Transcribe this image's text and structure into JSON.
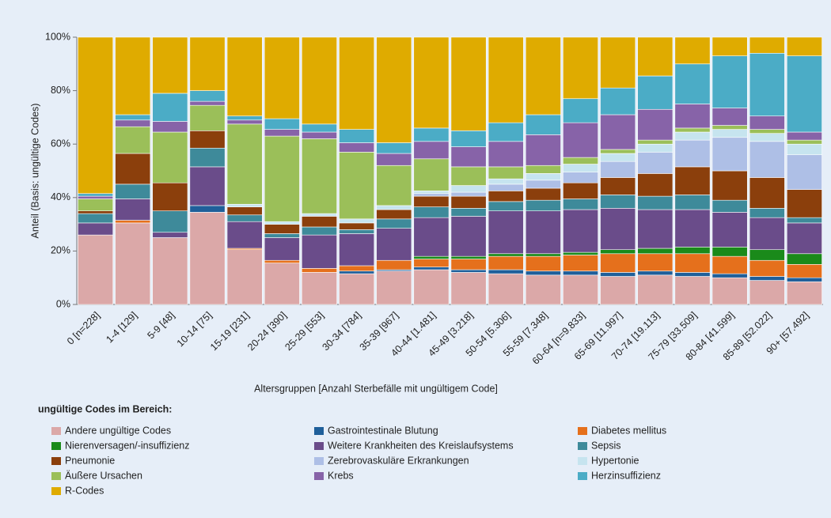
{
  "chart_data": {
    "type": "stacked_bar",
    "y_label": "Anteil (Basis: ungültige Codes)",
    "x_label": "Altersgruppen [Anzahl Sterbefälle mit ungültigem Code]",
    "legend_title": "ungültige Codes im Bereich:",
    "categories": [
      "0 [n=228]",
      "1-4 [129]",
      "5-9 [48]",
      "10-14 [75]",
      "15-19 [231]",
      "20-24 [390]",
      "25-29 [553]",
      "30-34 [784]",
      "35-39 [967]",
      "40-44 [1.481]",
      "45-49 [3.218]",
      "50-54 [5.306]",
      "55-59 [7.348]",
      "60-64 [n=9.833]",
      "65-69 [11.997]",
      "70-74 [19.113]",
      "75-79 [33.509]",
      "80-84 [41.599]",
      "85-89 [52.022]",
      "90+ [57.492]"
    ],
    "ylim": [
      0,
      100
    ],
    "yticks": [
      {
        "value": 0,
        "label": "0%"
      },
      {
        "value": 20,
        "label": "20%"
      },
      {
        "value": 40,
        "label": "40%"
      },
      {
        "value": 60,
        "label": "60%"
      },
      {
        "value": 80,
        "label": "80%"
      },
      {
        "value": 100,
        "label": "100%"
      }
    ],
    "series": [
      {
        "name": "Andere ungültige Codes",
        "color": "#dba8a8",
        "values": [
          26,
          30.5,
          25,
          34.5,
          20.5,
          15.5,
          12,
          11.5,
          12.5,
          13,
          12,
          11.5,
          11,
          11,
          10.5,
          11,
          10.5,
          10,
          9,
          8.5
        ]
      },
      {
        "name": "Gastrointestinale Blutung",
        "color": "#1f5f9a",
        "values": [
          0,
          0,
          0,
          2.5,
          0,
          0,
          0,
          1,
          0.5,
          1,
          1,
          1.5,
          1.5,
          1.5,
          1.5,
          1.5,
          1.5,
          1.5,
          1.5,
          1.5
        ]
      },
      {
        "name": "Diabetes mellitus",
        "color": "#e5701c",
        "values": [
          0,
          1,
          0,
          0,
          0.5,
          1,
          1.5,
          2,
          3.5,
          3,
          4,
          5,
          5.5,
          6,
          7,
          6.5,
          7,
          6.5,
          6,
          5
        ]
      },
      {
        "name": "Nierenversagen/-insuffizienz",
        "color": "#1a8a1a",
        "values": [
          0,
          0,
          0,
          0,
          0,
          0,
          0,
          0,
          0,
          1,
          1,
          1,
          1,
          1,
          1.5,
          2,
          2.5,
          3.5,
          4,
          4
        ]
      },
      {
        "name": "Weitere Krankheiten des Kreislaufsystems",
        "color": "#6a4c8a",
        "values": [
          4.5,
          8,
          2,
          14.5,
          10,
          8.5,
          12.5,
          12,
          12,
          14.5,
          15,
          16,
          16,
          16,
          15.5,
          14.5,
          14,
          13,
          12,
          11.5
        ]
      },
      {
        "name": "Sepsis",
        "color": "#3e8a9a",
        "values": [
          3.5,
          5.5,
          8,
          7,
          2.5,
          1.5,
          3,
          1.5,
          3.5,
          4,
          3,
          3.5,
          4,
          4,
          5,
          5,
          5.5,
          4.5,
          3.5,
          2
        ]
      },
      {
        "name": "Pneumonie",
        "color": "#8b3f0c",
        "values": [
          1,
          11.5,
          10.5,
          6.5,
          3,
          3.5,
          4,
          2.5,
          3.5,
          4,
          4.5,
          4,
          4.5,
          6,
          6.5,
          8.5,
          10.5,
          11,
          11.5,
          10.5
        ]
      },
      {
        "name": "Zerebrovaskuläre Erkrankungen",
        "color": "#aebfe6",
        "values": [
          0,
          0,
          0,
          0,
          0,
          0,
          0,
          0,
          0,
          1,
          1.5,
          2.5,
          3,
          4,
          6,
          8,
          10,
          12.5,
          13.5,
          13
        ]
      },
      {
        "name": "Hypertonie",
        "color": "#c6e4ef",
        "values": [
          0,
          0,
          0,
          0,
          1,
          1,
          1,
          1.5,
          1.5,
          1,
          2.5,
          2,
          2.5,
          3,
          3,
          3,
          3,
          3,
          3,
          4
        ]
      },
      {
        "name": "Äußere Ursachen",
        "color": "#9bbf59",
        "values": [
          4.5,
          10,
          19,
          9.5,
          30,
          32,
          28,
          25,
          15,
          12,
          7,
          4.5,
          3,
          2.5,
          1.5,
          1.5,
          1.5,
          1.5,
          1.5,
          1.5
        ]
      },
      {
        "name": "Krebs",
        "color": "#8763a8",
        "values": [
          1,
          2.5,
          4,
          1.5,
          1.5,
          2.5,
          2.5,
          3.5,
          4.5,
          6.5,
          7.5,
          9.5,
          11.5,
          13,
          13,
          11.5,
          9,
          6.5,
          5,
          3
        ]
      },
      {
        "name": "Herzinsuffizienz",
        "color": "#4bacc6",
        "values": [
          1,
          2,
          10.5,
          4,
          1.5,
          4,
          3,
          5,
          4,
          5,
          6,
          7,
          7.5,
          9,
          10,
          12.5,
          15,
          19.5,
          23.5,
          28.5
        ]
      },
      {
        "name": "R-Codes",
        "color": "#dfab00",
        "values": [
          58.5,
          29,
          21,
          20,
          29.5,
          30.5,
          32.5,
          34.5,
          39.5,
          34,
          35,
          32,
          29,
          23,
          19,
          14.5,
          10,
          7,
          6,
          7
        ]
      }
    ]
  }
}
